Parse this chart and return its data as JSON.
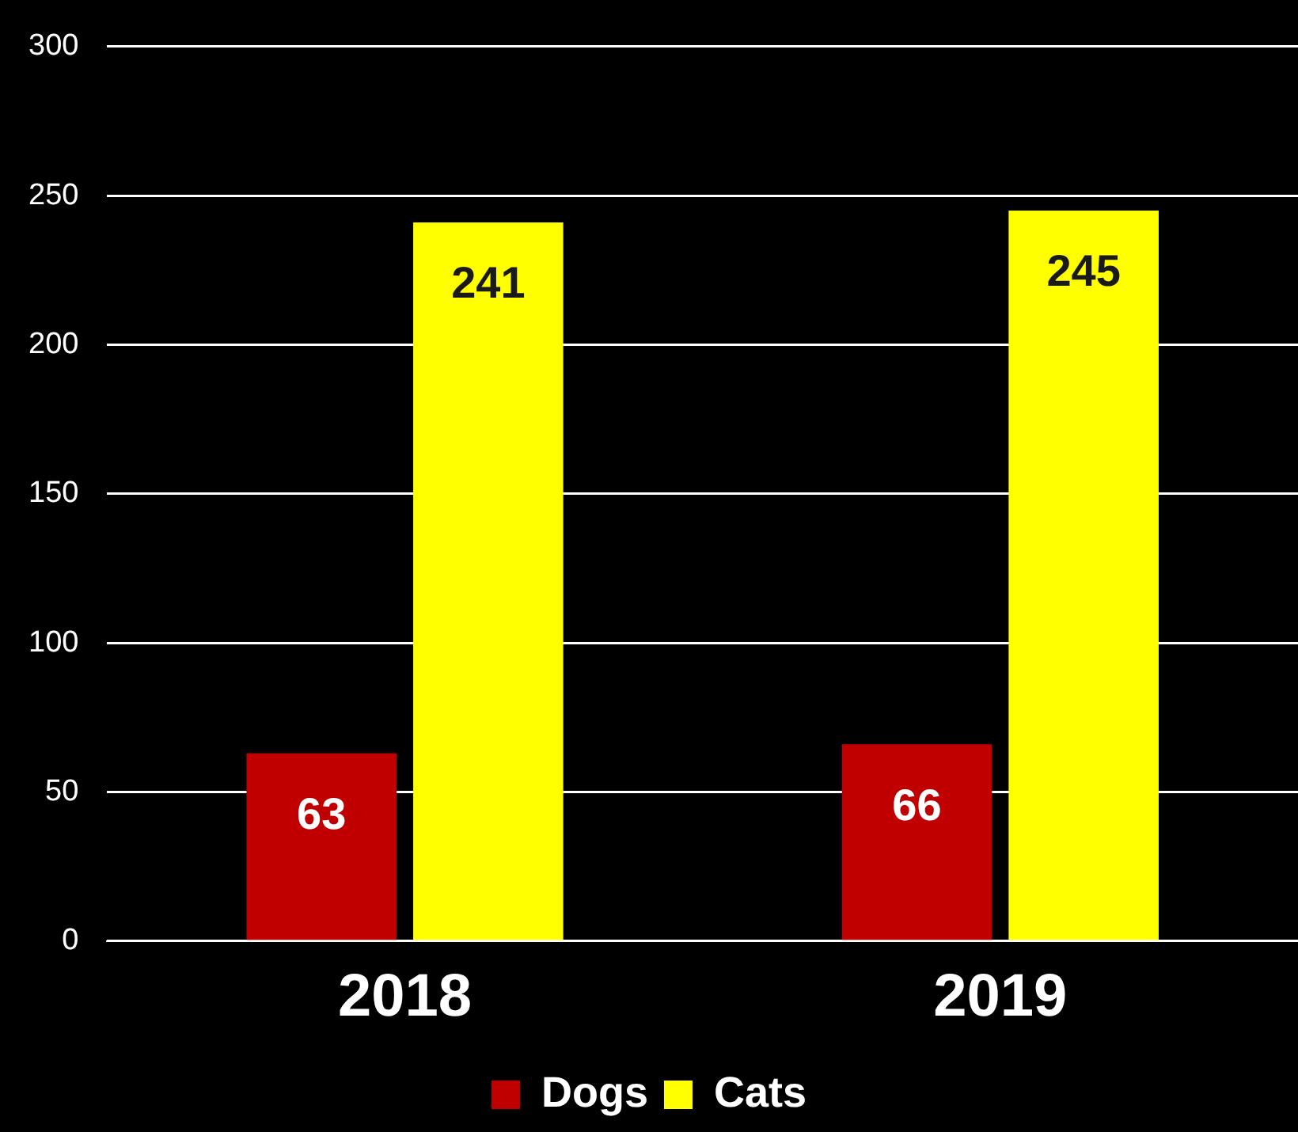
{
  "chart_data": {
    "type": "bar",
    "categories": [
      "2018",
      "2019"
    ],
    "series": [
      {
        "name": "Dogs",
        "color": "#c00000",
        "values": [
          63,
          66
        ]
      },
      {
        "name": "Cats",
        "color": "#ffff00",
        "values": [
          241,
          245
        ]
      }
    ],
    "ylim": [
      0,
      300
    ],
    "yticks": [
      0,
      50,
      100,
      150,
      200,
      250,
      300
    ],
    "grid": "y",
    "legend": "bottom",
    "data_labels": true
  }
}
